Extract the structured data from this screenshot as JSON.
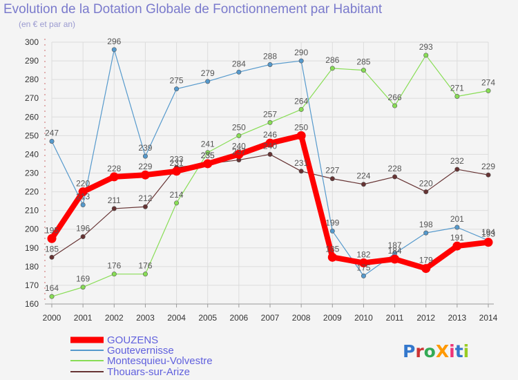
{
  "title": "Evolution de la Dotation Globale de Fonctionnement par Habitant",
  "subtitle": "(en € et par an)",
  "logo": "ProXiti",
  "colors": {
    "background": "#f4f4f4",
    "grid": "#dddddd",
    "title": "#7a7acc"
  },
  "chart_data": {
    "type": "line",
    "title": "Evolution de la Dotation Globale de Fonctionnement par Habitant",
    "subtitle": "(en € et par an)",
    "x": [
      "2000",
      "2001",
      "2002",
      "2003",
      "2004",
      "2005",
      "2006",
      "2007",
      "2008",
      "2009",
      "2010",
      "2011",
      "2012",
      "2013",
      "2014"
    ],
    "y_ticks": [
      160,
      170,
      180,
      190,
      200,
      210,
      220,
      230,
      240,
      250,
      260,
      270,
      280,
      290,
      300
    ],
    "ylim": [
      160,
      300
    ],
    "legend_position": "bottom-left",
    "series": [
      {
        "name": "GOUZENS",
        "color": "#ff0000",
        "values": [
          195,
          220,
          228,
          229,
          231,
          235,
          240,
          246,
          250,
          185,
          182,
          184,
          179,
          191,
          193
        ]
      },
      {
        "name": "Goutevernisse",
        "color": "#5599cc",
        "values": [
          247,
          213,
          296,
          239,
          275,
          279,
          284,
          288,
          290,
          199,
          175,
          187,
          198,
          201,
          194
        ]
      },
      {
        "name": "Montesquieu-Volvestre",
        "color": "#88dd55",
        "values": [
          164,
          169,
          176,
          176,
          214,
          241,
          250,
          257,
          264,
          286,
          285,
          266,
          293,
          271,
          274
        ]
      },
      {
        "name": "Thouars-sur-Arize",
        "color": "#663333",
        "values": [
          185,
          196,
          211,
          212,
          233,
          235,
          237,
          240,
          231,
          227,
          224,
          228,
          220,
          232,
          229
        ]
      }
    ]
  }
}
